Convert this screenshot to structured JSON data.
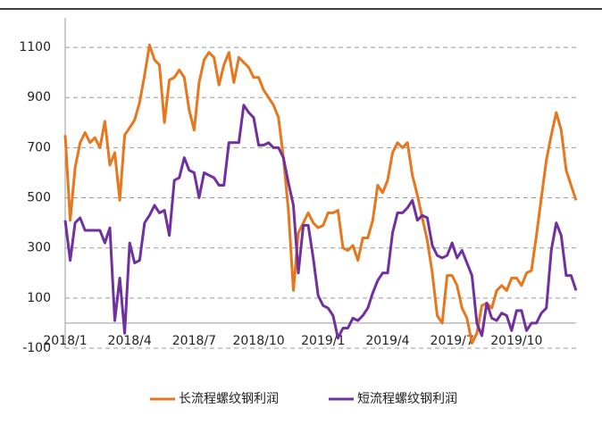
{
  "chart_data": {
    "type": "line",
    "categories": [
      "2018/1",
      null,
      null,
      null,
      null,
      null,
      null,
      null,
      null,
      null,
      null,
      null,
      null,
      "2018/4",
      null,
      null,
      null,
      null,
      null,
      null,
      null,
      null,
      null,
      null,
      null,
      null,
      "2018/7",
      null,
      null,
      null,
      null,
      null,
      null,
      null,
      null,
      null,
      null,
      null,
      null,
      "2018/10",
      null,
      null,
      null,
      null,
      null,
      null,
      null,
      null,
      null,
      null,
      null,
      null,
      "2019/1",
      null,
      null,
      null,
      null,
      null,
      null,
      null,
      null,
      null,
      null,
      null,
      null,
      "2019/4",
      null,
      null,
      null,
      null,
      null,
      null,
      null,
      null,
      null,
      null,
      null,
      null,
      "2019/7",
      null,
      null,
      null,
      null,
      null,
      null,
      null,
      null,
      null,
      null,
      null,
      null,
      "2019/10",
      null,
      null,
      null,
      null,
      null,
      null,
      null,
      null,
      null,
      null,
      null,
      null
    ],
    "series": [
      {
        "name": "长流程螺纹钢利润",
        "color": "#e8761c",
        "values": [
          750,
          410,
          620,
          720,
          760,
          720,
          740,
          700,
          805,
          630,
          680,
          490,
          750,
          780,
          810,
          880,
          990,
          1110,
          1050,
          1030,
          800,
          970,
          980,
          1010,
          980,
          850,
          770,
          960,
          1050,
          1080,
          1060,
          950,
          1030,
          1080,
          960,
          1060,
          1040,
          1020,
          980,
          980,
          930,
          900,
          870,
          820,
          660,
          450,
          130,
          360,
          400,
          440,
          400,
          380,
          390,
          440,
          440,
          450,
          300,
          290,
          310,
          250,
          340,
          340,
          410,
          550,
          520,
          570,
          680,
          720,
          700,
          720,
          590,
          510,
          420,
          330,
          200,
          30,
          0,
          190,
          190,
          150,
          60,
          20,
          -80,
          -40,
          70,
          80,
          60,
          130,
          150,
          130,
          180,
          180,
          150,
          200,
          210,
          350,
          500,
          650,
          750,
          840,
          770,
          610,
          550,
          490
        ]
      },
      {
        "name": "短流程螺纹钢利润",
        "color": "#7030a0",
        "values": [
          410,
          250,
          400,
          420,
          370,
          370,
          370,
          370,
          320,
          380,
          10,
          180,
          -40,
          320,
          240,
          250,
          400,
          430,
          470,
          440,
          450,
          350,
          570,
          580,
          660,
          610,
          600,
          500,
          600,
          590,
          580,
          550,
          550,
          720,
          720,
          720,
          870,
          840,
          820,
          710,
          710,
          720,
          700,
          700,
          660,
          560,
          470,
          200,
          390,
          390,
          260,
          110,
          70,
          60,
          30,
          -60,
          -20,
          -20,
          20,
          10,
          30,
          60,
          120,
          170,
          200,
          200,
          360,
          440,
          440,
          460,
          490,
          410,
          430,
          420,
          310,
          270,
          260,
          270,
          320,
          260,
          290,
          240,
          190,
          0,
          -50,
          80,
          20,
          10,
          40,
          30,
          -30,
          50,
          50,
          -30,
          0,
          0,
          40,
          60,
          290,
          400,
          350,
          190,
          190,
          130
        ]
      }
    ],
    "ylim": [
      -100,
      1200
    ],
    "yticks": [
      -100,
      100,
      300,
      500,
      700,
      900,
      1100
    ],
    "grid": true,
    "legend": "bottom"
  }
}
